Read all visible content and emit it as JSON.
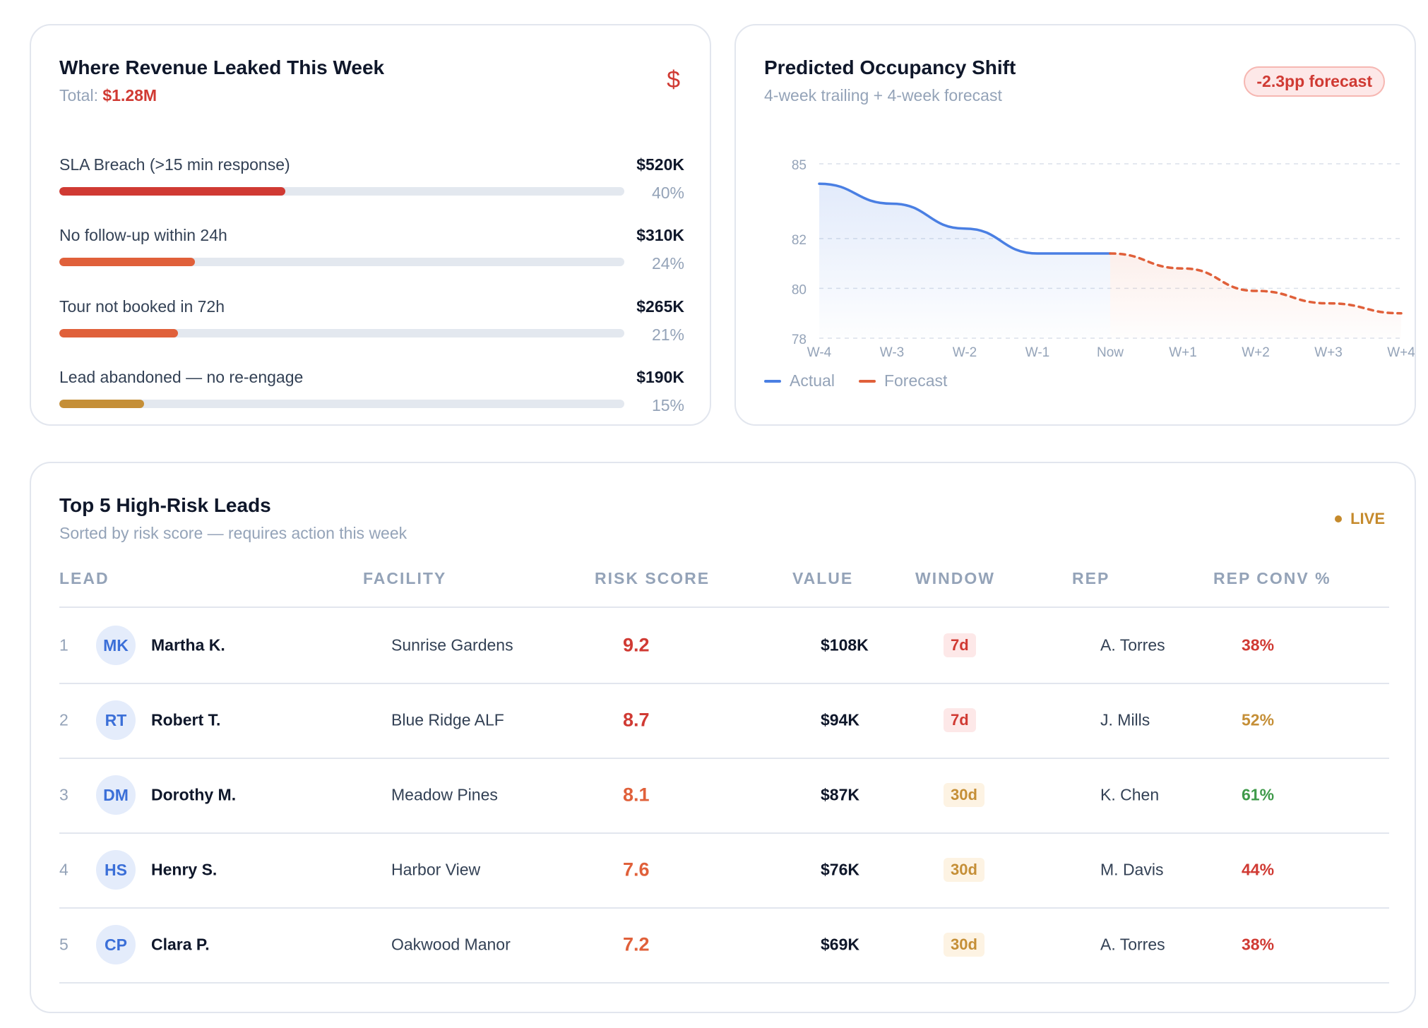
{
  "leak": {
    "title": "Where Revenue Leaked This Week",
    "total_label": "Total:",
    "total_value": "$1.28M",
    "icon": "dollar-icon",
    "icon_glyph": "$",
    "items": [
      {
        "label": "SLA Breach (>15 min response)",
        "amount": "$520K",
        "pct": "40%",
        "fraction": 0.4,
        "color": "#d03a33"
      },
      {
        "label": "No follow-up within 24h",
        "amount": "$310K",
        "pct": "24%",
        "fraction": 0.24,
        "color": "#e0603a"
      },
      {
        "label": "Tour not booked in 72h",
        "amount": "$265K",
        "pct": "21%",
        "fraction": 0.21,
        "color": "#e0603a"
      },
      {
        "label": "Lead abandoned — no re-engage",
        "amount": "$190K",
        "pct": "15%",
        "fraction": 0.15,
        "color": "#c58f37"
      }
    ]
  },
  "occupancy": {
    "title": "Predicted Occupancy Shift",
    "subtitle": "4-week trailing + 4-week forecast",
    "badge": "-2.3pp forecast",
    "legend": [
      {
        "label": "Actual",
        "color": "#4a7fe3"
      },
      {
        "label": "Forecast",
        "color": "#e0603a"
      }
    ],
    "chart_data": {
      "type": "line",
      "x": [
        "W-4",
        "W-3",
        "W-2",
        "W-1",
        "Now",
        "W+1",
        "W+2",
        "W+3",
        "W+4"
      ],
      "y_ticks": [
        78,
        80,
        82,
        85
      ],
      "ylim": [
        78,
        85
      ],
      "grid": true,
      "series": [
        {
          "name": "Actual",
          "color": "#4a7fe3",
          "style": "solid",
          "values": [
            84.2,
            83.4,
            82.4,
            81.4,
            81.4,
            null,
            null,
            null,
            null
          ]
        },
        {
          "name": "Forecast",
          "color": "#e0603a",
          "style": "dashed",
          "values": [
            null,
            null,
            null,
            null,
            81.4,
            80.8,
            79.9,
            79.4,
            79.0
          ]
        }
      ]
    }
  },
  "leads": {
    "title": "Top 5 High-Risk Leads",
    "subtitle": "Sorted by risk score — requires action this week",
    "live": "LIVE",
    "columns": [
      "LEAD",
      "FACILITY",
      "RISK SCORE",
      "VALUE",
      "WINDOW",
      "REP",
      "REP CONV %"
    ],
    "rows": [
      {
        "rank": "1",
        "initials": "MK",
        "name": "Martha K.",
        "facility": "Sunrise Gardens",
        "risk": "9.2",
        "risk_color": "#d03a33",
        "value": "$108K",
        "window": "7d",
        "window_fg": "#d03a33",
        "window_bg": "#fde8e8",
        "rep": "A. Torres",
        "conv": "38%",
        "conv_color": "#d03a33"
      },
      {
        "rank": "2",
        "initials": "RT",
        "name": "Robert T.",
        "facility": "Blue Ridge ALF",
        "risk": "8.7",
        "risk_color": "#d03a33",
        "value": "$94K",
        "window": "7d",
        "window_fg": "#d03a33",
        "window_bg": "#fde8e8",
        "rep": "J. Mills",
        "conv": "52%",
        "conv_color": "#c58f37"
      },
      {
        "rank": "3",
        "initials": "DM",
        "name": "Dorothy M.",
        "facility": "Meadow Pines",
        "risk": "8.1",
        "risk_color": "#e0603a",
        "value": "$87K",
        "window": "30d",
        "window_fg": "#c58f37",
        "window_bg": "#fdf3e3",
        "rep": "K. Chen",
        "conv": "61%",
        "conv_color": "#3f9a4a"
      },
      {
        "rank": "4",
        "initials": "HS",
        "name": "Henry S.",
        "facility": "Harbor View",
        "risk": "7.6",
        "risk_color": "#e0603a",
        "value": "$76K",
        "window": "30d",
        "window_fg": "#c58f37",
        "window_bg": "#fdf3e3",
        "rep": "M. Davis",
        "conv": "44%",
        "conv_color": "#d03a33"
      },
      {
        "rank": "5",
        "initials": "CP",
        "name": "Clara P.",
        "facility": "Oakwood Manor",
        "risk": "7.2",
        "risk_color": "#e0603a",
        "value": "$69K",
        "window": "30d",
        "window_fg": "#c58f37",
        "window_bg": "#fdf3e3",
        "rep": "A. Torres",
        "conv": "38%",
        "conv_color": "#d03a33"
      }
    ]
  }
}
